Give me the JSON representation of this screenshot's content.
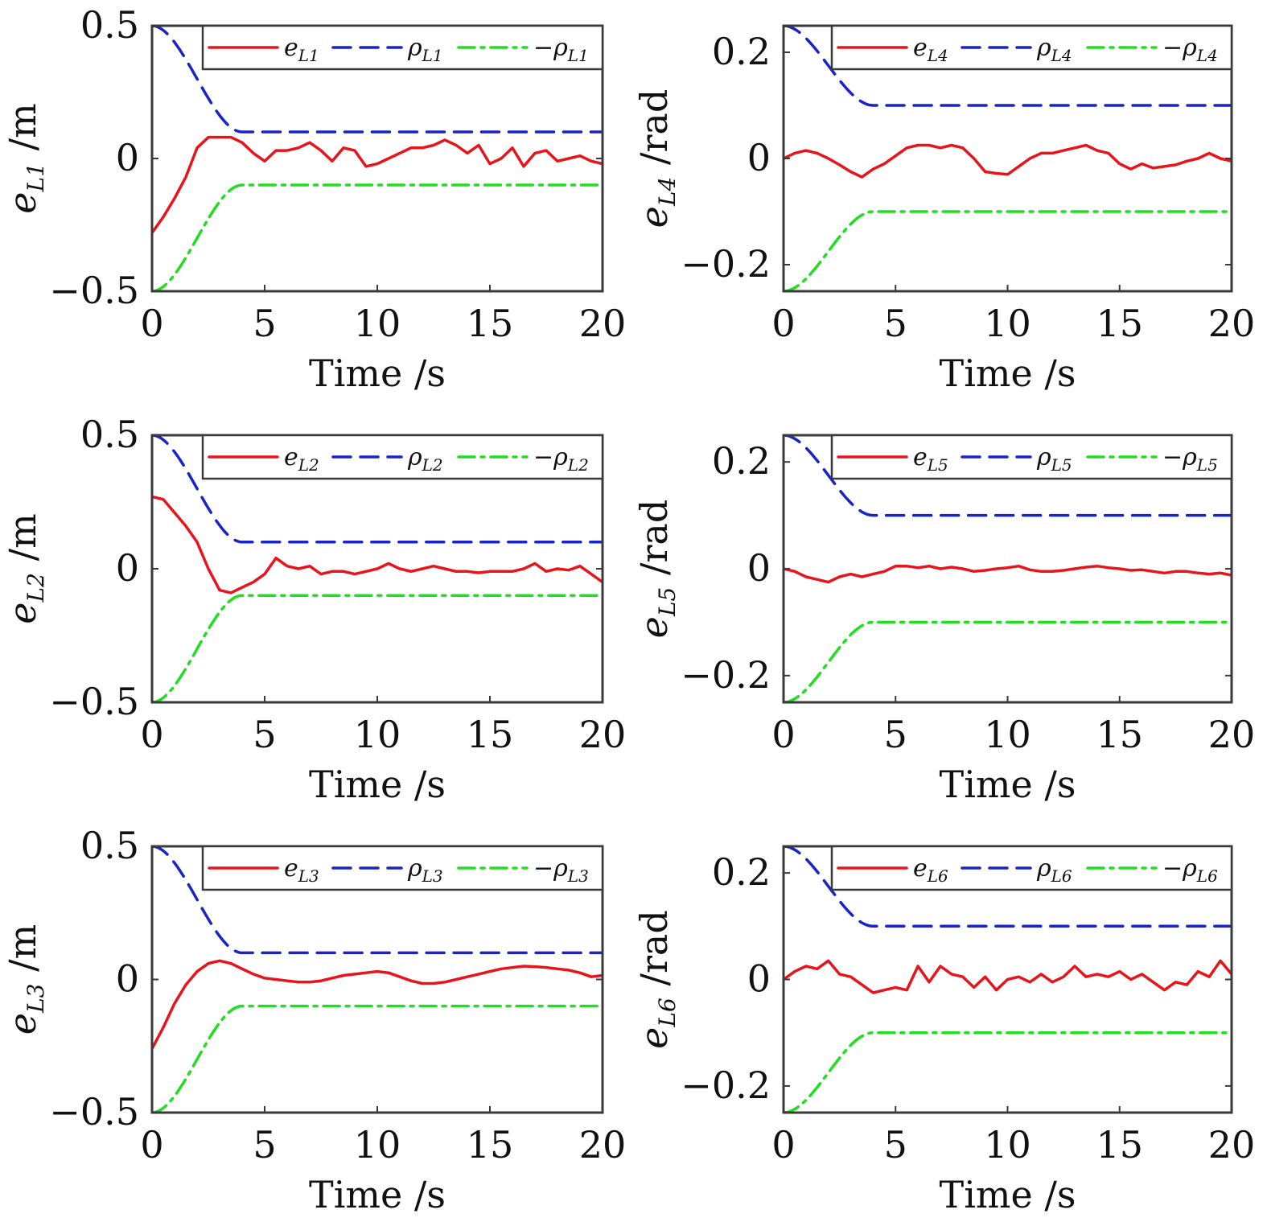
{
  "chart_data": [
    {
      "type": "line",
      "id": "L1",
      "xlabel": "Time /s",
      "ylabel_main": "e",
      "ylabel_sub": "L1",
      "ylabel_unit": " /m",
      "xlim": [
        0,
        20
      ],
      "ylim": [
        -0.5,
        0.5
      ],
      "xticks": [
        0,
        5,
        10,
        15,
        20
      ],
      "yticks": [
        -0.5,
        0,
        0.5
      ],
      "ytick_labels": [
        "−0.5",
        "0",
        "0.5"
      ],
      "xtick_labels": [
        "0",
        "5",
        "10",
        "15",
        "20"
      ],
      "legend_loc": "top-right",
      "series": [
        {
          "name": "e_L1",
          "style": "solid",
          "color": "#e8141b",
          "label_main": "e",
          "label_sub": "L1",
          "x": [
            0,
            0.5,
            1,
            1.5,
            2,
            2.5,
            3,
            3.5,
            4,
            4.5,
            5,
            5.5,
            6,
            6.5,
            7,
            7.5,
            8,
            8.5,
            9,
            9.5,
            10,
            10.5,
            11,
            11.5,
            12,
            12.5,
            13,
            13.5,
            14,
            14.5,
            15,
            15.5,
            16,
            16.5,
            17,
            17.5,
            18,
            18.5,
            19,
            19.5,
            20
          ],
          "y": [
            -0.28,
            -0.22,
            -0.15,
            -0.07,
            0.04,
            0.08,
            0.08,
            0.08,
            0.06,
            0.02,
            -0.01,
            0.03,
            0.03,
            0.04,
            0.06,
            0.03,
            -0.01,
            0.04,
            0.03,
            -0.03,
            -0.02,
            0.0,
            0.02,
            0.04,
            0.04,
            0.05,
            0.07,
            0.05,
            0.02,
            0.05,
            -0.02,
            0.0,
            0.04,
            -0.03,
            0.02,
            0.03,
            -0.01,
            0.0,
            0.01,
            -0.01,
            -0.02
          ]
        },
        {
          "name": "rho_L1",
          "style": "dashed",
          "color": "#1a23c8",
          "label_main": "ρ",
          "label_sub": "L1",
          "bound": "upper",
          "start": 0.5,
          "end": 0.1,
          "t_conv": 4.0
        },
        {
          "name": "-rho_L1",
          "style": "dashdot",
          "color": "#22dd22",
          "label_main": "−ρ",
          "label_sub": "L1",
          "bound": "lower",
          "start": -0.5,
          "end": -0.1,
          "t_conv": 4.0
        }
      ]
    },
    {
      "type": "line",
      "id": "L4",
      "xlabel": "Time /s",
      "ylabel_main": "e",
      "ylabel_sub": "L4",
      "ylabel_unit": " /rad",
      "xlim": [
        0,
        20
      ],
      "ylim": [
        -0.25,
        0.25
      ],
      "xticks": [
        0,
        5,
        10,
        15,
        20
      ],
      "yticks": [
        -0.2,
        0,
        0.2
      ],
      "ytick_labels": [
        "−0.2",
        "0",
        "0.2"
      ],
      "xtick_labels": [
        "0",
        "5",
        "10",
        "15",
        "20"
      ],
      "legend_loc": "top-right",
      "series": [
        {
          "name": "e_L4",
          "style": "solid",
          "color": "#e8141b",
          "label_main": "e",
          "label_sub": "L4",
          "x": [
            0,
            0.5,
            1,
            1.5,
            2,
            2.5,
            3,
            3.5,
            4,
            4.5,
            5,
            5.5,
            6,
            6.5,
            7,
            7.5,
            8,
            8.5,
            9,
            9.5,
            10,
            10.5,
            11,
            11.5,
            12,
            12.5,
            13,
            13.5,
            14,
            14.5,
            15,
            15.5,
            16,
            16.5,
            17,
            17.5,
            18,
            18.5,
            19,
            19.5,
            20
          ],
          "y": [
            0.0,
            0.01,
            0.015,
            0.01,
            0.0,
            -0.012,
            -0.025,
            -0.035,
            -0.02,
            -0.01,
            0.005,
            0.02,
            0.025,
            0.025,
            0.02,
            0.025,
            0.02,
            0.0,
            -0.025,
            -0.028,
            -0.03,
            -0.015,
            0.0,
            0.01,
            0.01,
            0.015,
            0.02,
            0.025,
            0.015,
            0.01,
            -0.01,
            -0.02,
            -0.01,
            -0.018,
            -0.015,
            -0.012,
            -0.005,
            0.0,
            0.01,
            0.0,
            -0.005
          ]
        },
        {
          "name": "rho_L4",
          "style": "dashed",
          "color": "#1a23c8",
          "label_main": "ρ",
          "label_sub": "L4",
          "bound": "upper",
          "start": 0.25,
          "end": 0.1,
          "t_conv": 4.0
        },
        {
          "name": "-rho_L4",
          "style": "dashdot",
          "color": "#22dd22",
          "label_main": "−ρ",
          "label_sub": "L4",
          "bound": "lower",
          "start": -0.25,
          "end": -0.1,
          "t_conv": 4.0
        }
      ]
    },
    {
      "type": "line",
      "id": "L2",
      "xlabel": "Time /s",
      "ylabel_main": "e",
      "ylabel_sub": "L2",
      "ylabel_unit": " /m",
      "xlim": [
        0,
        20
      ],
      "ylim": [
        -0.5,
        0.5
      ],
      "xticks": [
        0,
        5,
        10,
        15,
        20
      ],
      "yticks": [
        -0.5,
        0,
        0.5
      ],
      "ytick_labels": [
        "−0.5",
        "0",
        "0.5"
      ],
      "xtick_labels": [
        "0",
        "5",
        "10",
        "15",
        "20"
      ],
      "legend_loc": "top-right",
      "series": [
        {
          "name": "e_L2",
          "style": "solid",
          "color": "#e8141b",
          "label_main": "e",
          "label_sub": "L2",
          "x": [
            0,
            0.5,
            1,
            1.5,
            2,
            2.5,
            3,
            3.5,
            4,
            4.5,
            5,
            5.5,
            6,
            6.5,
            7,
            7.5,
            8,
            8.5,
            9,
            9.5,
            10,
            10.5,
            11,
            11.5,
            12,
            12.5,
            13,
            13.5,
            14,
            14.5,
            15,
            15.5,
            16,
            16.5,
            17,
            17.5,
            18,
            18.5,
            19,
            19.5,
            20
          ],
          "y": [
            0.27,
            0.26,
            0.21,
            0.16,
            0.1,
            0.0,
            -0.08,
            -0.09,
            -0.07,
            -0.05,
            -0.02,
            0.04,
            0.01,
            0.0,
            0.01,
            -0.02,
            -0.01,
            -0.01,
            -0.02,
            -0.01,
            0.0,
            0.02,
            0.0,
            -0.01,
            0.0,
            0.01,
            0.0,
            -0.01,
            -0.01,
            -0.015,
            -0.01,
            -0.01,
            -0.01,
            0.0,
            0.02,
            -0.01,
            0.0,
            -0.005,
            0.01,
            -0.02,
            -0.05
          ]
        },
        {
          "name": "rho_L2",
          "style": "dashed",
          "color": "#1a23c8",
          "label_main": "ρ",
          "label_sub": "L2",
          "bound": "upper",
          "start": 0.5,
          "end": 0.1,
          "t_conv": 4.0
        },
        {
          "name": "-rho_L2",
          "style": "dashdot",
          "color": "#22dd22",
          "label_main": "−ρ",
          "label_sub": "L2",
          "bound": "lower",
          "start": -0.5,
          "end": -0.1,
          "t_conv": 4.0
        }
      ]
    },
    {
      "type": "line",
      "id": "L5",
      "xlabel": "Time /s",
      "ylabel_main": "e",
      "ylabel_sub": "L5",
      "ylabel_unit": " /rad",
      "xlim": [
        0,
        20
      ],
      "ylim": [
        -0.25,
        0.25
      ],
      "xticks": [
        0,
        5,
        10,
        15,
        20
      ],
      "yticks": [
        -0.2,
        0,
        0.2
      ],
      "ytick_labels": [
        "−0.2",
        "0",
        "0.2"
      ],
      "xtick_labels": [
        "0",
        "5",
        "10",
        "15",
        "20"
      ],
      "legend_loc": "top-right",
      "series": [
        {
          "name": "e_L5",
          "style": "solid",
          "color": "#e8141b",
          "label_main": "e",
          "label_sub": "L5",
          "x": [
            0,
            0.5,
            1,
            1.5,
            2,
            2.5,
            3,
            3.5,
            4,
            4.5,
            5,
            5.5,
            6,
            6.5,
            7,
            7.5,
            8,
            8.5,
            9,
            9.5,
            10,
            10.5,
            11,
            11.5,
            12,
            12.5,
            13,
            13.5,
            14,
            14.5,
            15,
            15.5,
            16,
            16.5,
            17,
            17.5,
            18,
            18.5,
            19,
            19.5,
            20
          ],
          "y": [
            0.0,
            -0.005,
            -0.015,
            -0.02,
            -0.025,
            -0.015,
            -0.01,
            -0.015,
            -0.01,
            -0.005,
            0.005,
            0.005,
            0.002,
            0.005,
            0.0,
            0.003,
            0.0,
            -0.005,
            -0.003,
            0.0,
            0.002,
            0.005,
            -0.002,
            -0.005,
            -0.005,
            -0.003,
            0.0,
            0.003,
            0.005,
            0.002,
            0.0,
            -0.003,
            -0.002,
            -0.005,
            -0.008,
            -0.005,
            -0.005,
            -0.008,
            -0.01,
            -0.008,
            -0.012
          ]
        },
        {
          "name": "rho_L5",
          "style": "dashed",
          "color": "#1a23c8",
          "label_main": "ρ",
          "label_sub": "L5",
          "bound": "upper",
          "start": 0.25,
          "end": 0.1,
          "t_conv": 4.0
        },
        {
          "name": "-rho_L5",
          "style": "dashdot",
          "color": "#22dd22",
          "label_main": "−ρ",
          "label_sub": "L5",
          "bound": "lower",
          "start": -0.25,
          "end": -0.1,
          "t_conv": 4.0
        }
      ]
    },
    {
      "type": "line",
      "id": "L3",
      "xlabel": "Time /s",
      "ylabel_main": "e",
      "ylabel_sub": "L3",
      "ylabel_unit": " /m",
      "xlim": [
        0,
        20
      ],
      "ylim": [
        -0.5,
        0.5
      ],
      "xticks": [
        0,
        5,
        10,
        15,
        20
      ],
      "yticks": [
        -0.5,
        0,
        0.5
      ],
      "ytick_labels": [
        "−0.5",
        "0",
        "0.5"
      ],
      "xtick_labels": [
        "0",
        "5",
        "10",
        "15",
        "20"
      ],
      "legend_loc": "top-right",
      "series": [
        {
          "name": "e_L3",
          "style": "solid",
          "color": "#e8141b",
          "label_main": "e",
          "label_sub": "L3",
          "x": [
            0,
            0.5,
            1,
            1.5,
            2,
            2.5,
            3,
            3.5,
            4,
            4.5,
            5,
            5.5,
            6,
            6.5,
            7,
            7.5,
            8,
            8.5,
            9,
            9.5,
            10,
            10.5,
            11,
            11.5,
            12,
            12.5,
            13,
            13.5,
            14,
            14.5,
            15,
            15.5,
            16,
            16.5,
            17,
            17.5,
            18,
            18.5,
            19,
            19.5,
            20
          ],
          "y": [
            -0.26,
            -0.18,
            -0.09,
            -0.02,
            0.03,
            0.06,
            0.07,
            0.06,
            0.04,
            0.02,
            0.005,
            0.0,
            -0.005,
            -0.01,
            -0.01,
            -0.005,
            0.005,
            0.015,
            0.02,
            0.025,
            0.03,
            0.025,
            0.01,
            -0.005,
            -0.015,
            -0.015,
            -0.01,
            0.0,
            0.01,
            0.02,
            0.03,
            0.04,
            0.045,
            0.05,
            0.048,
            0.045,
            0.04,
            0.035,
            0.025,
            0.01,
            0.015
          ]
        },
        {
          "name": "rho_L3",
          "style": "dashed",
          "color": "#1a23c8",
          "label_main": "ρ",
          "label_sub": "L3",
          "bound": "upper",
          "start": 0.5,
          "end": 0.1,
          "t_conv": 4.0
        },
        {
          "name": "-rho_L3",
          "style": "dashdot",
          "color": "#22dd22",
          "label_main": "−ρ",
          "label_sub": "L3",
          "bound": "lower",
          "start": -0.5,
          "end": -0.1,
          "t_conv": 4.0
        }
      ]
    },
    {
      "type": "line",
      "id": "L6",
      "xlabel": "Time /s",
      "ylabel_main": "e",
      "ylabel_sub": "L6",
      "ylabel_unit": " /rad",
      "xlim": [
        0,
        20
      ],
      "ylim": [
        -0.25,
        0.25
      ],
      "xticks": [
        0,
        5,
        10,
        15,
        20
      ],
      "yticks": [
        -0.2,
        0,
        0.2
      ],
      "ytick_labels": [
        "−0.2",
        "0",
        "0.2"
      ],
      "xtick_labels": [
        "0",
        "5",
        "10",
        "15",
        "20"
      ],
      "legend_loc": "top-right",
      "series": [
        {
          "name": "e_L6",
          "style": "solid",
          "color": "#e8141b",
          "label_main": "e",
          "label_sub": "L6",
          "x": [
            0,
            0.5,
            1,
            1.5,
            2,
            2.5,
            3,
            3.5,
            4,
            4.5,
            5,
            5.5,
            6,
            6.5,
            7,
            7.5,
            8,
            8.5,
            9,
            9.5,
            10,
            10.5,
            11,
            11.5,
            12,
            12.5,
            13,
            13.5,
            14,
            14.5,
            15,
            15.5,
            16,
            16.5,
            17,
            17.5,
            18,
            18.5,
            19,
            19.5,
            20
          ],
          "y": [
            0.0,
            0.015,
            0.025,
            0.02,
            0.035,
            0.01,
            0.005,
            -0.01,
            -0.025,
            -0.02,
            -0.015,
            -0.02,
            0.025,
            -0.005,
            0.025,
            0.01,
            0.005,
            -0.015,
            0.005,
            -0.02,
            0.0,
            0.005,
            -0.005,
            0.01,
            -0.005,
            0.005,
            0.025,
            0.005,
            0.01,
            0.005,
            0.015,
            0.0,
            0.01,
            -0.005,
            -0.02,
            -0.005,
            -0.01,
            0.015,
            0.005,
            0.035,
            0.01
          ]
        },
        {
          "name": "rho_L6",
          "style": "dashed",
          "color": "#1a23c8",
          "label_main": "ρ",
          "label_sub": "L6",
          "bound": "upper",
          "start": 0.25,
          "end": 0.1,
          "t_conv": 4.0
        },
        {
          "name": "-rho_L6",
          "style": "dashdot",
          "color": "#22dd22",
          "label_main": "−ρ",
          "label_sub": "L6",
          "bound": "lower",
          "start": -0.25,
          "end": -0.1,
          "t_conv": 4.0
        }
      ]
    }
  ]
}
